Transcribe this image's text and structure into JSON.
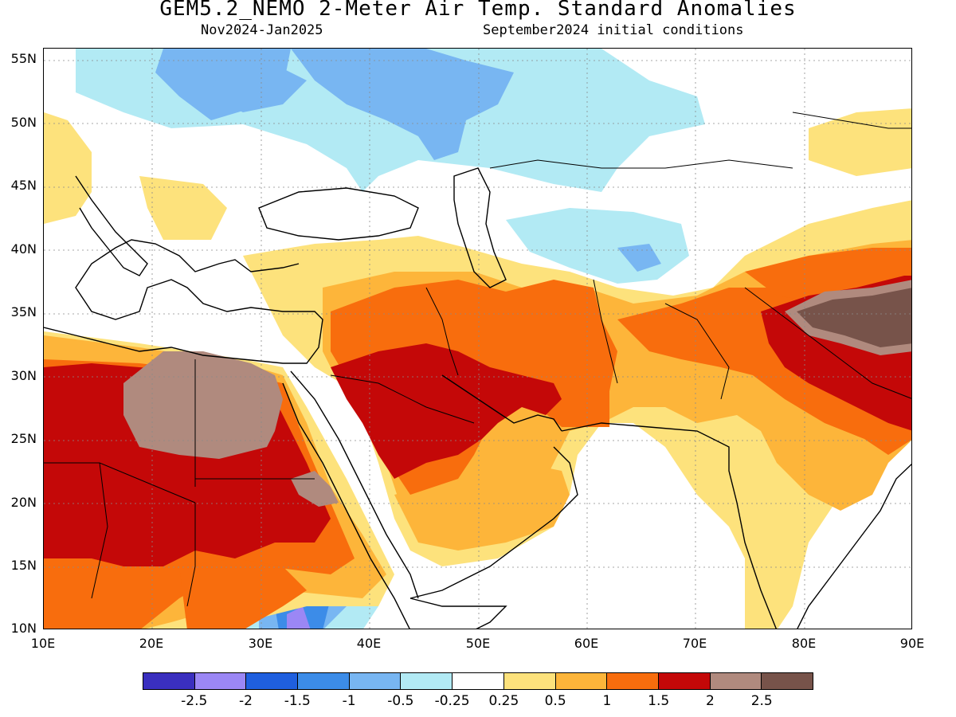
{
  "header": {
    "title": "GEM5.2_NEMO 2-Meter Air Temp. Standard Anomalies",
    "period": "Nov2024-Jan2025",
    "initial_conditions": "September2024 initial conditions"
  },
  "axes": {
    "lat_labels": [
      "55N",
      "50N",
      "45N",
      "40N",
      "35N",
      "30N",
      "25N",
      "20N",
      "15N",
      "10N"
    ],
    "lon_labels": [
      "10E",
      "20E",
      "30E",
      "40E",
      "50E",
      "60E",
      "70E",
      "80E",
      "90E"
    ]
  },
  "legend": {
    "colors": [
      "#3a2fbf",
      "#9b87f5",
      "#1f5fdf",
      "#3c8ce8",
      "#78b6f2",
      "#b2eaf4",
      "#ffffff",
      "#fde27c",
      "#fdb53a",
      "#f86d0d",
      "#c40808",
      "#b08a7e",
      "#77534a"
    ],
    "labels": [
      "-2.5",
      "-2",
      "-1.5",
      "-1",
      "-0.5",
      "-0.25",
      "0.25",
      "0.5",
      "1",
      "1.5",
      "2",
      "2.5"
    ]
  },
  "map": {
    "region": "Middle East / North Africa / South Asia",
    "lon_range": [
      10,
      90
    ],
    "lat_range": [
      10,
      56
    ],
    "grid": "dotted",
    "colors": {
      "warm_light": "#fde27c",
      "warm_mid": "#fdb53a",
      "warm_orange": "#f86d0d",
      "warm_red": "#c40808",
      "warm_pink": "#b08a7e",
      "warm_brown": "#77534a",
      "cool_light": "#b2eaf4",
      "cool_mid": "#78b6f2",
      "cool_blue": "#3c8ce8",
      "cool_dark": "#1f5fdf",
      "cool_violet": "#9b87f5"
    }
  }
}
